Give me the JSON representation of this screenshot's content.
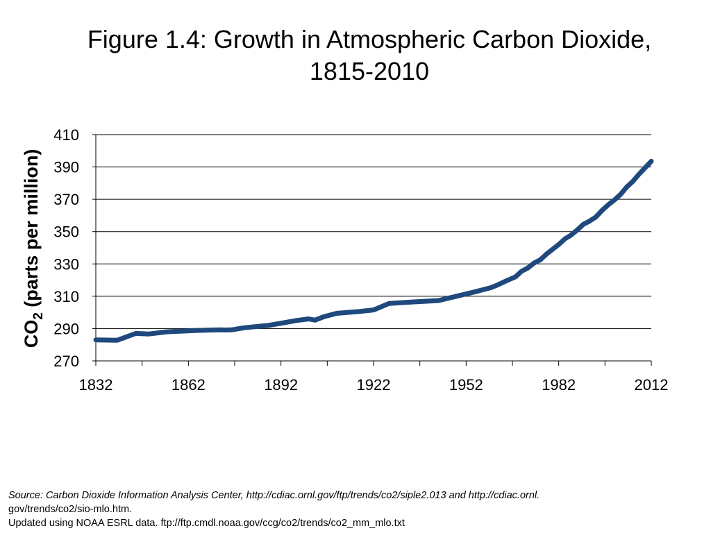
{
  "title": {
    "line1": "Figure 1.4: Growth in Atmospheric Carbon Dioxide,",
    "line2": "1815-2010"
  },
  "source": {
    "line1": "Source: Carbon Dioxide Information Analysis Center, http://cdiac.ornl.gov/ftp/trends/co2/siple2.013 and http://cdiac.ornl.",
    "line2": "gov/trends/co2/sio-mlo.htm.",
    "line3": "Updated using NOAA ESRL data. ftp://ftp.cmdl.noaa.gov/ccg/co2/trends/co2_mm_mlo.txt"
  },
  "colors": {
    "line": "#1F497D",
    "grid": "#000000"
  },
  "chart_data": {
    "type": "line",
    "ylabel_main": "CO",
    "ylabel_sub": "2",
    "ylabel_rest": " (parts per million)",
    "xlim": [
      1832,
      2012
    ],
    "ylim": [
      270,
      410
    ],
    "x_ticks": [
      "1832",
      "1862",
      "1892",
      "1922",
      "1952",
      "1982",
      "2012"
    ],
    "y_ticks": [
      "270",
      "290",
      "310",
      "330",
      "350",
      "370",
      "390",
      "410"
    ],
    "grid": "horizontal",
    "series": [
      {
        "x": [
          1832,
          1839,
          1845,
          1849,
          1855,
          1864,
          1872,
          1874,
          1876,
          1880,
          1888,
          1893,
          1897,
          1901,
          1903,
          1906,
          1910,
          1917,
          1922,
          1927,
          1935,
          1943,
          1950,
          1955,
          1960,
          1962,
          1965,
          1968,
          1970,
          1972,
          1974,
          1976,
          1978,
          1980,
          1982,
          1984,
          1986,
          1988,
          1990,
          1992,
          1994,
          1996,
          1998,
          2000,
          2002,
          2004,
          2006,
          2008,
          2010,
          2012
        ],
        "y": [
          283,
          282.8,
          287,
          286.6,
          288,
          288.8,
          289.2,
          289.1,
          289.2,
          290.5,
          292,
          293.6,
          295,
          296,
          295.2,
          297.4,
          299.4,
          300.5,
          301.5,
          305.5,
          306.5,
          307.3,
          310.5,
          312.8,
          315.3,
          316.8,
          319.5,
          322,
          325.5,
          327.5,
          330.5,
          332.5,
          336,
          339,
          342,
          345.5,
          347.8,
          351,
          354.5,
          356.5,
          359,
          363,
          366.5,
          369.5,
          373,
          377.5,
          381,
          385.5,
          389.5,
          393.5
        ]
      }
    ]
  }
}
